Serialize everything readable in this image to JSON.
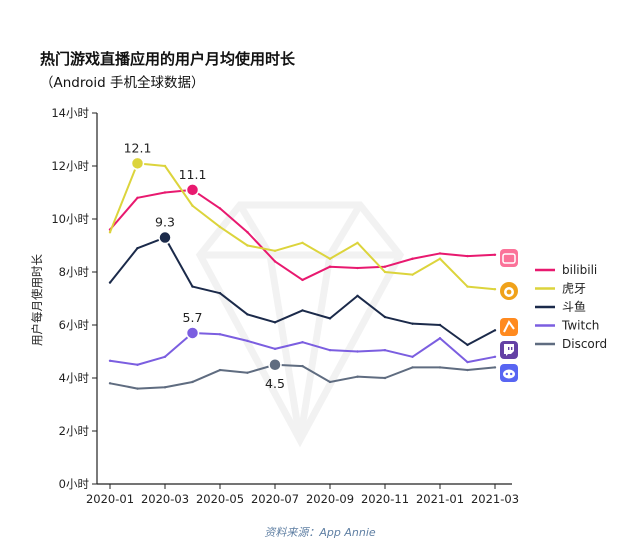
{
  "header": {
    "title": "热门游戏直播应用的用户月均使用时长",
    "subtitle": "（Android 手机全球数据）",
    "source": "资料来源：App Annie"
  },
  "chart_data": {
    "type": "line",
    "title": "热门游戏直播应用的用户月均使用时长",
    "subtitle": "（Android 手机全球数据）",
    "xlabel": "",
    "ylabel": "用户每月使用时长",
    "ylim": [
      0,
      14
    ],
    "y_ticks": [
      0,
      2,
      4,
      6,
      8,
      10,
      12,
      14
    ],
    "y_tick_labels": [
      "0小时",
      "2小时",
      "4小时",
      "6小时",
      "8小时",
      "10小时",
      "12小时",
      "14小时"
    ],
    "x": [
      "2020-01",
      "2020-02",
      "2020-03",
      "2020-04",
      "2020-05",
      "2020-06",
      "2020-07",
      "2020-08",
      "2020-09",
      "2020-10",
      "2020-11",
      "2020-12",
      "2021-01",
      "2021-02",
      "2021-03"
    ],
    "x_tick_labels": [
      "2020-01",
      "2020-03",
      "2020-05",
      "2020-07",
      "2020-09",
      "2020-11",
      "2021-01",
      "2021-03"
    ],
    "legend_position": "right",
    "grid": false,
    "series": [
      {
        "name": "bilibili",
        "color": "#e8196f",
        "icon": "bilibili-app-icon",
        "values": [
          9.6,
          10.8,
          11.0,
          11.1,
          10.4,
          9.5,
          8.4,
          7.7,
          8.2,
          8.15,
          8.2,
          8.5,
          8.7,
          8.6,
          8.65
        ],
        "highlight": {
          "index": 3,
          "label": "11.1"
        }
      },
      {
        "name": "虎牙",
        "color": "#dcd43c",
        "icon": "huya-app-icon",
        "values": [
          9.5,
          12.1,
          12.0,
          10.5,
          9.7,
          9.0,
          8.8,
          9.1,
          8.5,
          9.1,
          8.0,
          7.9,
          8.5,
          7.45,
          7.35
        ],
        "highlight": {
          "index": 1,
          "label": "12.1"
        }
      },
      {
        "name": "斗鱼",
        "color": "#1b2a4a",
        "icon": "douyu-app-icon",
        "values": [
          7.6,
          8.9,
          9.3,
          7.45,
          7.2,
          6.4,
          6.1,
          6.55,
          6.25,
          7.1,
          6.3,
          6.05,
          6.0,
          5.25,
          5.8
        ],
        "highlight": {
          "index": 2,
          "label": "9.3"
        }
      },
      {
        "name": "Twitch",
        "color": "#7b5ee0",
        "icon": "twitch-app-icon",
        "values": [
          4.65,
          4.5,
          4.8,
          5.7,
          5.65,
          5.4,
          5.1,
          5.35,
          5.05,
          5.0,
          5.05,
          4.8,
          5.5,
          4.6,
          4.8
        ],
        "highlight": {
          "index": 3,
          "label": "5.7"
        }
      },
      {
        "name": "Discord",
        "color": "#5f6c80",
        "icon": "discord-app-icon",
        "values": [
          3.8,
          3.6,
          3.65,
          3.85,
          4.3,
          4.2,
          4.5,
          4.45,
          3.85,
          4.05,
          4.0,
          4.4,
          4.4,
          4.3,
          4.4
        ],
        "highlight": {
          "index": 6,
          "label": "4.5"
        }
      }
    ]
  }
}
